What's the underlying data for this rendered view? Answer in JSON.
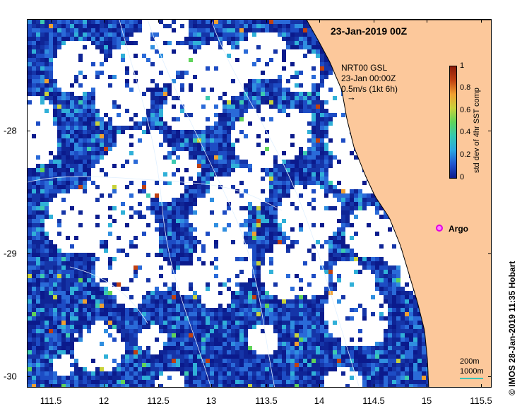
{
  "title": "23-Jan-2019 00Z",
  "vector_legend": {
    "line1": "NRT00 GSL",
    "line2": "23-Jan 00:00Z",
    "line3": "0.5m/s (1kt 6h)",
    "arrow": "→"
  },
  "argo_label": "Argo",
  "scale_bar": {
    "line1": "200m",
    "line2": "1000m"
  },
  "credit": "©  IMOS 28-Jan-2019 11:35 Hobart",
  "colorbar": {
    "label": "std dev of 4hr SST comp",
    "ticks": [
      "1",
      "0.8",
      "0.6",
      "0.4",
      "0.2",
      "0"
    ],
    "colors": [
      "#0b1a8c",
      "#1f55d0",
      "#29a7e0",
      "#33c8b0",
      "#5fd35a",
      "#c8d23a",
      "#f0a030",
      "#c04010",
      "#8a1a08"
    ]
  },
  "x_axis": {
    "ticks": [
      "111.5",
      "12",
      "112.5",
      "13",
      "113.5",
      "14",
      "114.5",
      "15",
      "115.5"
    ]
  },
  "y_axis": {
    "ticks": [
      "-28",
      "-29",
      "-30"
    ]
  },
  "map_colors": {
    "ocean": "#1030a0",
    "land": "#fcc89b",
    "cloud": "#ffffff",
    "contour": "#e0f0ff"
  }
}
